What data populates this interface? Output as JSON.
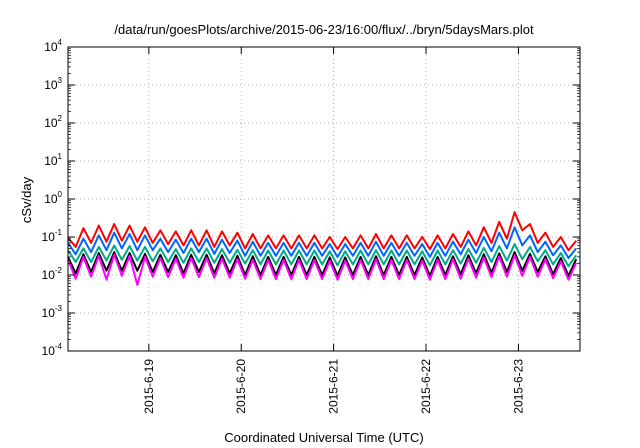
{
  "chart_data": {
    "type": "line",
    "title": "/data/run/goesPlots/archive/2015-06-23/16:00/flux/../bryn/5daysMars.plot",
    "xlabel": "Coordinated Universal Time (UTC)",
    "ylabel": "cSv/day",
    "yscale": "log",
    "ylim": [
      0.0001,
      10000
    ],
    "xlim": [
      "2015-06-18 03:00",
      "2015-06-23 16:00"
    ],
    "grid": true,
    "y_ticks": [
      {
        "base": "10",
        "exp": "-4"
      },
      {
        "base": "10",
        "exp": "-3"
      },
      {
        "base": "10",
        "exp": "-2"
      },
      {
        "base": "10",
        "exp": "-1"
      },
      {
        "base": "10",
        "exp": "0"
      },
      {
        "base": "10",
        "exp": "1"
      },
      {
        "base": "10",
        "exp": "2"
      },
      {
        "base": "10",
        "exp": "3"
      },
      {
        "base": "10",
        "exp": "4"
      }
    ],
    "x_ticks": [
      {
        "label": "2015-6-19",
        "date": "2015-06-19 00:00"
      },
      {
        "label": "2015-6-20",
        "date": "2015-06-20 00:00"
      },
      {
        "label": "2015-6-21",
        "date": "2015-06-21 00:00"
      },
      {
        "label": "2015-6-22",
        "date": "2015-06-22 00:00"
      },
      {
        "label": "2015-6-23",
        "date": "2015-06-23 00:00"
      }
    ],
    "x": [
      "2015-06-18 03:00",
      "2015-06-18 05:00",
      "2015-06-18 07:00",
      "2015-06-18 09:00",
      "2015-06-18 11:00",
      "2015-06-18 13:00",
      "2015-06-18 15:00",
      "2015-06-18 17:00",
      "2015-06-18 19:00",
      "2015-06-18 21:00",
      "2015-06-18 23:00",
      "2015-06-19 01:00",
      "2015-06-19 03:00",
      "2015-06-19 05:00",
      "2015-06-19 07:00",
      "2015-06-19 09:00",
      "2015-06-19 11:00",
      "2015-06-19 13:00",
      "2015-06-19 15:00",
      "2015-06-19 17:00",
      "2015-06-19 19:00",
      "2015-06-19 21:00",
      "2015-06-19 23:00",
      "2015-06-20 01:00",
      "2015-06-20 03:00",
      "2015-06-20 05:00",
      "2015-06-20 07:00",
      "2015-06-20 09:00",
      "2015-06-20 11:00",
      "2015-06-20 13:00",
      "2015-06-20 15:00",
      "2015-06-20 17:00",
      "2015-06-20 19:00",
      "2015-06-20 21:00",
      "2015-06-20 23:00",
      "2015-06-21 01:00",
      "2015-06-21 03:00",
      "2015-06-21 05:00",
      "2015-06-21 07:00",
      "2015-06-21 09:00",
      "2015-06-21 11:00",
      "2015-06-21 13:00",
      "2015-06-21 15:00",
      "2015-06-21 17:00",
      "2015-06-21 19:00",
      "2015-06-21 21:00",
      "2015-06-21 23:00",
      "2015-06-22 01:00",
      "2015-06-22 03:00",
      "2015-06-22 05:00",
      "2015-06-22 07:00",
      "2015-06-22 09:00",
      "2015-06-22 11:00",
      "2015-06-22 13:00",
      "2015-06-22 15:00",
      "2015-06-22 17:00",
      "2015-06-22 19:00",
      "2015-06-22 21:00",
      "2015-06-22 23:00",
      "2015-06-23 01:00",
      "2015-06-23 03:00",
      "2015-06-23 05:00",
      "2015-06-23 07:00",
      "2015-06-23 09:00",
      "2015-06-23 11:00",
      "2015-06-23 13:00",
      "2015-06-23 15:00"
    ],
    "series": [
      {
        "color": "#ff0000",
        "values": [
          0.095,
          0.055,
          0.17,
          0.07,
          0.2,
          0.075,
          0.22,
          0.08,
          0.2,
          0.075,
          0.18,
          0.07,
          0.15,
          0.065,
          0.14,
          0.06,
          0.15,
          0.06,
          0.15,
          0.055,
          0.14,
          0.06,
          0.13,
          0.05,
          0.12,
          0.05,
          0.11,
          0.05,
          0.11,
          0.05,
          0.11,
          0.05,
          0.11,
          0.05,
          0.1,
          0.048,
          0.1,
          0.05,
          0.11,
          0.05,
          0.12,
          0.05,
          0.11,
          0.05,
          0.11,
          0.05,
          0.1,
          0.048,
          0.11,
          0.05,
          0.12,
          0.055,
          0.14,
          0.06,
          0.18,
          0.07,
          0.25,
          0.09,
          0.45,
          0.15,
          0.22,
          0.07,
          0.13,
          0.055,
          0.1,
          0.045,
          0.08
        ]
      },
      {
        "color": "#0066ff",
        "values": [
          0.07,
          0.035,
          0.09,
          0.04,
          0.11,
          0.045,
          0.13,
          0.05,
          0.12,
          0.045,
          0.11,
          0.045,
          0.09,
          0.04,
          0.085,
          0.038,
          0.09,
          0.04,
          0.09,
          0.036,
          0.085,
          0.038,
          0.08,
          0.032,
          0.075,
          0.032,
          0.07,
          0.032,
          0.07,
          0.032,
          0.07,
          0.032,
          0.07,
          0.032,
          0.065,
          0.03,
          0.065,
          0.032,
          0.07,
          0.032,
          0.075,
          0.032,
          0.07,
          0.032,
          0.07,
          0.032,
          0.065,
          0.03,
          0.07,
          0.032,
          0.075,
          0.035,
          0.085,
          0.038,
          0.1,
          0.042,
          0.13,
          0.05,
          0.18,
          0.06,
          0.11,
          0.04,
          0.075,
          0.033,
          0.06,
          0.028,
          0.05
        ]
      },
      {
        "color": "#00aa88",
        "values": [
          0.045,
          0.022,
          0.05,
          0.022,
          0.055,
          0.024,
          0.06,
          0.025,
          0.058,
          0.024,
          0.055,
          0.023,
          0.05,
          0.022,
          0.048,
          0.021,
          0.05,
          0.022,
          0.05,
          0.021,
          0.048,
          0.021,
          0.046,
          0.02,
          0.045,
          0.019,
          0.044,
          0.019,
          0.044,
          0.019,
          0.044,
          0.019,
          0.044,
          0.019,
          0.042,
          0.018,
          0.042,
          0.019,
          0.044,
          0.019,
          0.045,
          0.019,
          0.044,
          0.019,
          0.044,
          0.019,
          0.042,
          0.018,
          0.044,
          0.019,
          0.045,
          0.02,
          0.048,
          0.021,
          0.052,
          0.022,
          0.058,
          0.024,
          0.065,
          0.026,
          0.055,
          0.023,
          0.045,
          0.019,
          0.038,
          0.017,
          0.033
        ]
      },
      {
        "color": "#000000",
        "values": [
          0.03,
          0.011,
          0.035,
          0.012,
          0.038,
          0.013,
          0.04,
          0.013,
          0.038,
          0.013,
          0.036,
          0.012,
          0.034,
          0.012,
          0.033,
          0.011,
          0.034,
          0.012,
          0.034,
          0.011,
          0.033,
          0.011,
          0.032,
          0.01,
          0.031,
          0.01,
          0.03,
          0.01,
          0.03,
          0.01,
          0.03,
          0.01,
          0.03,
          0.01,
          0.029,
          0.0095,
          0.029,
          0.01,
          0.03,
          0.01,
          0.031,
          0.01,
          0.03,
          0.01,
          0.03,
          0.01,
          0.029,
          0.0095,
          0.03,
          0.01,
          0.031,
          0.0105,
          0.033,
          0.011,
          0.035,
          0.0115,
          0.037,
          0.012,
          0.04,
          0.013,
          0.036,
          0.012,
          0.031,
          0.0105,
          0.028,
          0.0095,
          0.026
        ]
      },
      {
        "color": "#ff00ff",
        "values": [
          0.025,
          0.008,
          0.03,
          0.009,
          0.032,
          0.0075,
          0.034,
          0.0095,
          0.032,
          0.0055,
          0.03,
          0.009,
          0.028,
          0.0088,
          0.027,
          0.0085,
          0.028,
          0.0088,
          0.028,
          0.0085,
          0.027,
          0.0085,
          0.026,
          0.008,
          0.025,
          0.0078,
          0.025,
          0.0078,
          0.025,
          0.0078,
          0.025,
          0.0078,
          0.025,
          0.0078,
          0.024,
          0.0075,
          0.024,
          0.0078,
          0.025,
          0.0078,
          0.026,
          0.0078,
          0.025,
          0.0078,
          0.025,
          0.0078,
          0.024,
          0.0075,
          0.025,
          0.0078,
          0.026,
          0.008,
          0.027,
          0.0085,
          0.029,
          0.0088,
          0.031,
          0.009,
          0.033,
          0.0095,
          0.03,
          0.009,
          0.026,
          0.0082,
          0.023,
          0.0075,
          0.021
        ]
      }
    ]
  }
}
